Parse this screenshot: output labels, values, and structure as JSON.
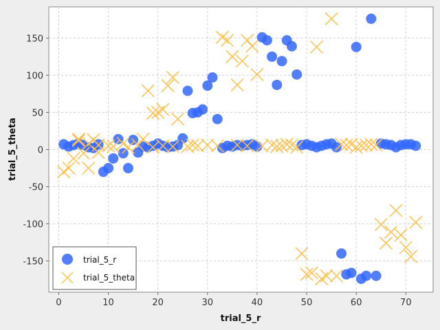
{
  "chart_data": {
    "type": "scatter",
    "xlabel": "trial_5_r",
    "ylabel": "trial_5_theta",
    "xlim": [
      -2,
      75.5
    ],
    "ylim": [
      -192,
      192
    ],
    "x_ticks": [
      0,
      10,
      20,
      30,
      40,
      50,
      60,
      70
    ],
    "y_ticks": [
      -150,
      -100,
      -50,
      0,
      50,
      100,
      150
    ],
    "grid": true,
    "legend_position": "bottom-left",
    "series": [
      {
        "name": "trial_5_r",
        "color": "#3366ff",
        "marker": "circle",
        "points": [
          [
            1,
            7
          ],
          [
            2,
            4
          ],
          [
            3,
            6
          ],
          [
            4,
            8
          ],
          [
            5,
            6
          ],
          [
            6,
            3
          ],
          [
            7,
            2
          ],
          [
            8,
            7
          ],
          [
            9,
            -30
          ],
          [
            10,
            -25
          ],
          [
            11,
            -12
          ],
          [
            12,
            14
          ],
          [
            13,
            -5
          ],
          [
            14,
            -25
          ],
          [
            15,
            13
          ],
          [
            16,
            -4
          ],
          [
            17,
            4
          ],
          [
            18,
            3
          ],
          [
            19,
            5
          ],
          [
            20,
            8
          ],
          [
            21,
            5
          ],
          [
            22,
            3
          ],
          [
            23,
            4
          ],
          [
            24,
            6
          ],
          [
            25,
            15
          ],
          [
            26,
            79
          ],
          [
            27,
            49
          ],
          [
            28,
            50
          ],
          [
            29,
            54
          ],
          [
            30,
            86
          ],
          [
            31,
            97
          ],
          [
            32,
            41
          ],
          [
            33,
            2
          ],
          [
            34,
            5
          ],
          [
            35,
            4
          ],
          [
            36,
            6
          ],
          [
            37,
            5
          ],
          [
            38,
            6
          ],
          [
            39,
            7
          ],
          [
            40,
            4
          ],
          [
            41,
            151
          ],
          [
            42,
            147
          ],
          [
            43,
            125
          ],
          [
            44,
            87
          ],
          [
            45,
            119
          ],
          [
            46,
            147
          ],
          [
            47,
            139
          ],
          [
            48,
            101
          ],
          [
            49,
            6
          ],
          [
            50,
            7
          ],
          [
            51,
            5
          ],
          [
            52,
            3
          ],
          [
            53,
            5
          ],
          [
            54,
            7
          ],
          [
            55,
            8
          ],
          [
            56,
            3
          ],
          [
            57,
            -140
          ],
          [
            58,
            -168
          ],
          [
            59,
            -166
          ],
          [
            60,
            138
          ],
          [
            61,
            -174
          ],
          [
            62,
            -170
          ],
          [
            63,
            176
          ],
          [
            64,
            -170
          ],
          [
            65,
            8
          ],
          [
            66,
            7
          ],
          [
            67,
            6
          ],
          [
            68,
            3
          ],
          [
            69,
            6
          ],
          [
            70,
            7
          ],
          [
            71,
            7
          ],
          [
            72,
            5
          ]
        ]
      },
      {
        "name": "trial_5_theta",
        "color": "#ffc04c",
        "marker": "x",
        "points": [
          [
            1,
            -30
          ],
          [
            2,
            -25
          ],
          [
            3,
            -12
          ],
          [
            4,
            14
          ],
          [
            5,
            -5
          ],
          [
            6,
            -25
          ],
          [
            7,
            13
          ],
          [
            8,
            -4
          ],
          [
            4,
            12
          ],
          [
            6,
            8
          ],
          [
            8,
            6
          ],
          [
            10,
            5
          ],
          [
            11,
            4
          ],
          [
            13,
            8
          ],
          [
            14,
            3
          ],
          [
            16,
            6
          ],
          [
            17,
            14
          ],
          [
            18,
            79
          ],
          [
            19,
            49
          ],
          [
            20,
            50
          ],
          [
            21,
            54
          ],
          [
            22,
            86
          ],
          [
            23,
            97
          ],
          [
            24,
            41
          ],
          [
            19,
            3
          ],
          [
            21,
            5
          ],
          [
            23,
            4
          ],
          [
            26,
            4
          ],
          [
            27,
            6
          ],
          [
            28,
            5
          ],
          [
            30,
            6
          ],
          [
            32,
            5
          ],
          [
            33,
            151
          ],
          [
            34,
            147
          ],
          [
            35,
            125
          ],
          [
            36,
            87
          ],
          [
            37,
            119
          ],
          [
            38,
            147
          ],
          [
            39,
            139
          ],
          [
            40,
            101
          ],
          [
            36,
            6
          ],
          [
            38,
            5
          ],
          [
            41,
            5
          ],
          [
            43,
            6
          ],
          [
            44,
            4
          ],
          [
            45,
            5
          ],
          [
            46,
            7
          ],
          [
            47,
            6
          ],
          [
            48,
            3
          ],
          [
            49,
            -140
          ],
          [
            50,
            -168
          ],
          [
            51,
            -166
          ],
          [
            52,
            138
          ],
          [
            53,
            -174
          ],
          [
            54,
            -170
          ],
          [
            55,
            176
          ],
          [
            56,
            -170
          ],
          [
            57,
            7
          ],
          [
            58,
            6
          ],
          [
            59,
            7
          ],
          [
            60,
            3
          ],
          [
            61,
            5
          ],
          [
            62,
            6
          ],
          [
            63,
            7
          ],
          [
            64,
            6
          ],
          [
            65,
            -101
          ],
          [
            66,
            -126
          ],
          [
            67,
            -111
          ],
          [
            68,
            -82
          ],
          [
            69,
            -115
          ],
          [
            70,
            -132
          ],
          [
            71,
            -144
          ],
          [
            72,
            -98
          ]
        ]
      }
    ]
  }
}
